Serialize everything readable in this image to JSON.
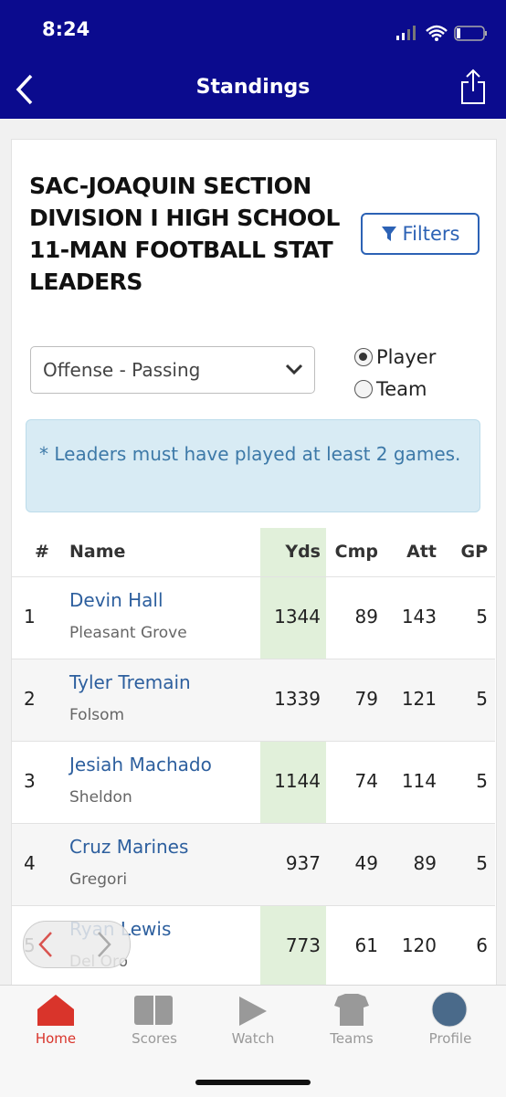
{
  "status_bar": {
    "time": "8:24"
  },
  "nav": {
    "title": "Standings"
  },
  "card": {
    "title": "SAC-JOAQUIN SECTION DIVISION I HIGH SCHOOL 11-MAN FOOTBALL STAT LEADERS",
    "filters_button": "Filters",
    "select": "Offense - Passing",
    "radios": [
      "Player",
      "Team"
    ],
    "notice": "* Leaders must have played at least 2 games."
  },
  "table": {
    "columns": [
      "#",
      "Name",
      "Yds",
      "Cmp",
      "Att",
      "GP"
    ],
    "rows": [
      {
        "rank": 1,
        "name": "Devin Hall",
        "school": "Pleasant Grove",
        "yds": 1344,
        "cmp": 89,
        "att": 143,
        "gp": 5
      },
      {
        "rank": 2,
        "name": "Tyler Tremain",
        "school": "Folsom",
        "yds": 1339,
        "cmp": 79,
        "att": 121,
        "gp": 5
      },
      {
        "rank": 3,
        "name": "Jesiah Machado",
        "school": "Sheldon",
        "yds": 1144,
        "cmp": 74,
        "att": 114,
        "gp": 5
      },
      {
        "rank": 4,
        "name": "Cruz Marines",
        "school": "Gregori",
        "yds": 937,
        "cmp": 49,
        "att": 89,
        "gp": 5
      },
      {
        "rank": 5,
        "name": "Ryan Lewis",
        "school": "Del Oro",
        "yds": 773,
        "cmp": 61,
        "att": 120,
        "gp": 6
      }
    ]
  },
  "tab_bar": [
    "Home",
    "Scores",
    "Watch",
    "Teams",
    "Profile"
  ]
}
